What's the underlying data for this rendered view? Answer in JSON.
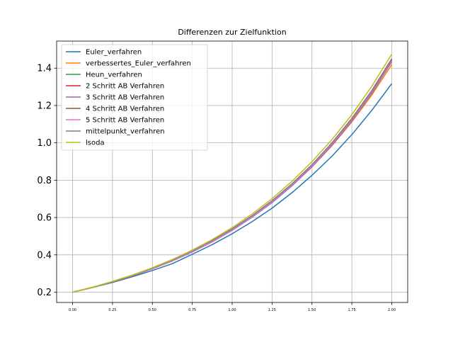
{
  "chart_data": {
    "type": "line",
    "title": "Differenzen zur Zielfunktion",
    "xlabel": "",
    "ylabel": "",
    "xlim": [
      -0.1,
      2.1
    ],
    "ylim": [
      0.145,
      1.545
    ],
    "xticks": [
      0.0,
      0.25,
      0.5,
      0.75,
      1.0,
      1.25,
      1.5,
      1.75,
      2.0
    ],
    "xtick_labels": [
      "0.00",
      "0.25",
      "0.50",
      "0.75",
      "1.00",
      "1.25",
      "1.50",
      "1.75",
      "2.00"
    ],
    "yticks": [
      0.2,
      0.4,
      0.6,
      0.8,
      1.0,
      1.2,
      1.4
    ],
    "ytick_labels": [
      "0.2",
      "0.4",
      "0.6",
      "0.8",
      "1.0",
      "1.2",
      "1.4"
    ],
    "grid": true,
    "legend_position": "upper-left",
    "x": [
      0.0,
      0.125,
      0.25,
      0.375,
      0.5,
      0.625,
      0.75,
      0.875,
      1.0,
      1.125,
      1.25,
      1.375,
      1.5,
      1.625,
      1.75,
      1.875,
      2.0
    ],
    "series": [
      {
        "name": "Euler_verfahren",
        "color": "#1f77b4",
        "values": [
          0.2,
          0.225,
          0.252,
          0.283,
          0.316,
          0.353,
          0.403,
          0.455,
          0.513,
          0.578,
          0.65,
          0.733,
          0.826,
          0.928,
          1.044,
          1.174,
          1.317
        ]
      },
      {
        "name": "verbessertes_Euler_verfahren",
        "color": "#ff7f0e",
        "values": [
          0.2,
          0.226,
          0.256,
          0.289,
          0.327,
          0.37,
          0.418,
          0.472,
          0.534,
          0.604,
          0.682,
          0.771,
          0.871,
          0.984,
          1.112,
          1.256,
          1.419
        ]
      },
      {
        "name": "Heun_verfahren",
        "color": "#2ca02c",
        "values": [
          0.2,
          0.226,
          0.256,
          0.29,
          0.328,
          0.371,
          0.42,
          0.475,
          0.537,
          0.608,
          0.688,
          0.778,
          0.88,
          0.995,
          1.126,
          1.273,
          1.44
        ]
      },
      {
        "name": "2 Schritt AB Verfahren",
        "color": "#d62728",
        "values": [
          0.2,
          0.226,
          0.255,
          0.288,
          0.326,
          0.369,
          0.418,
          0.473,
          0.536,
          0.607,
          0.687,
          0.778,
          0.881,
          0.997,
          1.128,
          1.277,
          1.445
        ]
      },
      {
        "name": "3 Schritt AB Verfahren",
        "color": "#9467bd",
        "values": [
          0.2,
          0.226,
          0.255,
          0.288,
          0.325,
          0.367,
          0.415,
          0.469,
          0.531,
          0.601,
          0.68,
          0.77,
          0.872,
          0.987,
          1.118,
          1.266,
          1.434
        ]
      },
      {
        "name": "4 Schritt AB Verfahren",
        "color": "#8c564b",
        "values": [
          0.2,
          0.226,
          0.255,
          0.288,
          0.326,
          0.369,
          0.418,
          0.473,
          0.536,
          0.607,
          0.688,
          0.779,
          0.882,
          0.999,
          1.131,
          1.28,
          1.45
        ]
      },
      {
        "name": "5 Schritt AB Verfahren",
        "color": "#e377c2",
        "values": [
          0.2,
          0.226,
          0.255,
          0.288,
          0.325,
          0.368,
          0.416,
          0.471,
          0.533,
          0.604,
          0.684,
          0.775,
          0.877,
          0.993,
          1.124,
          1.273,
          1.441
        ]
      },
      {
        "name": "mittelpunkt_verfahren",
        "color": "#7f7f7f",
        "values": [
          0.2,
          0.226,
          0.256,
          0.29,
          0.329,
          0.372,
          0.421,
          0.477,
          0.539,
          0.61,
          0.69,
          0.781,
          0.883,
          0.999,
          1.13,
          1.278,
          1.446
        ]
      },
      {
        "name": "lsoda",
        "color": "#bcbd22",
        "values": [
          0.2,
          0.227,
          0.258,
          0.292,
          0.331,
          0.375,
          0.425,
          0.482,
          0.546,
          0.619,
          0.701,
          0.794,
          0.899,
          1.017,
          1.151,
          1.303,
          1.475
        ]
      }
    ]
  }
}
